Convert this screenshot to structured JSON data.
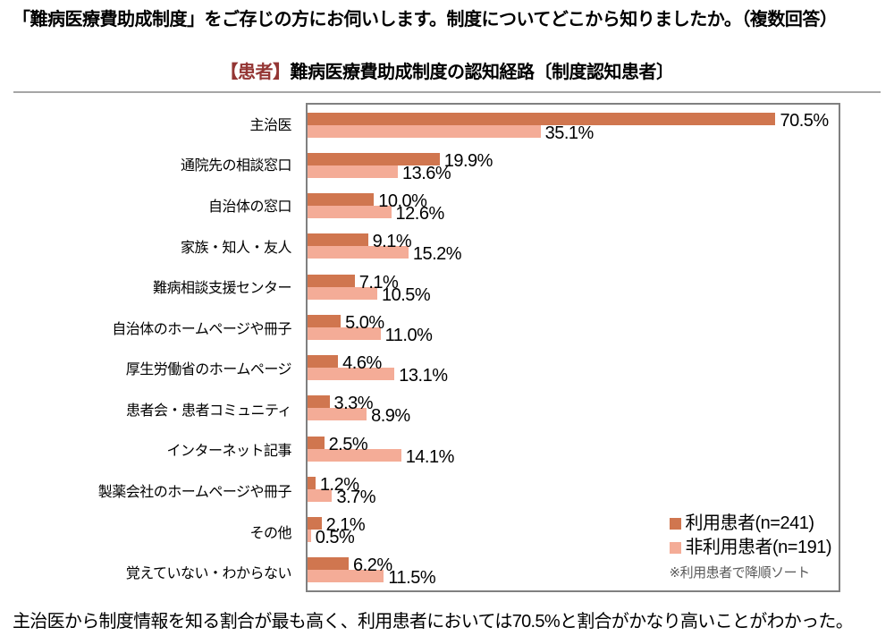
{
  "page": {
    "title": "「難病医療費助成制度」をご存じの方にお伺いします。制度についてどこから知りましたか。（複数回答）",
    "subtitle_tag": "【患者】",
    "subtitle_main": "難病医療費助成制度の認知経路〔制度認知患者〕",
    "caption": "主治医から制度情報を知る割合が最も高く、利用患者においては70.5%と割合がかなり高いことがわかった。"
  },
  "colors": {
    "used_patient": "#D0764F",
    "non_used_patient": "#F4AC97",
    "subtitle_tag": "#943634",
    "plot_border": "#808080",
    "divider": "#A6A6A6",
    "note_text": "#595959"
  },
  "legend": {
    "used_label": "利用患者(n=241)",
    "non_used_label": "非利用患者(n=191)",
    "note": "※利用患者で降順ソート"
  },
  "chart_data": {
    "type": "bar",
    "orientation": "horizontal",
    "title": "【患者】難病医療費助成制度の認知経路〔制度認知患者〕",
    "categories": [
      "主治医",
      "通院先の相談窓口",
      "自治体の窓口",
      "家族・知人・友人",
      "難病相談支援センター",
      "自治体のホームページや冊子",
      "厚生労働省のホームページ",
      "患者会・患者コミュニティ",
      "インターネット記事",
      "製薬会社のホームページや冊子",
      "その他",
      "覚えていない・わからない"
    ],
    "series": [
      {
        "name": "利用患者(n=241)",
        "color": "#D0764F",
        "values": [
          70.5,
          19.9,
          10.0,
          9.1,
          7.1,
          5.0,
          4.6,
          3.3,
          2.5,
          1.2,
          2.1,
          6.2
        ]
      },
      {
        "name": "非利用患者(n=191)",
        "color": "#F4AC97",
        "values": [
          35.1,
          13.6,
          12.6,
          15.2,
          10.5,
          11.0,
          13.1,
          8.9,
          14.1,
          3.7,
          0.5,
          11.5
        ]
      }
    ],
    "xlim": [
      0,
      80
    ],
    "value_suffix": "%",
    "value_decimals": 1,
    "grid": false,
    "legend_position": "inside-bottom-right",
    "sort_note": "※利用患者で降順ソート"
  }
}
